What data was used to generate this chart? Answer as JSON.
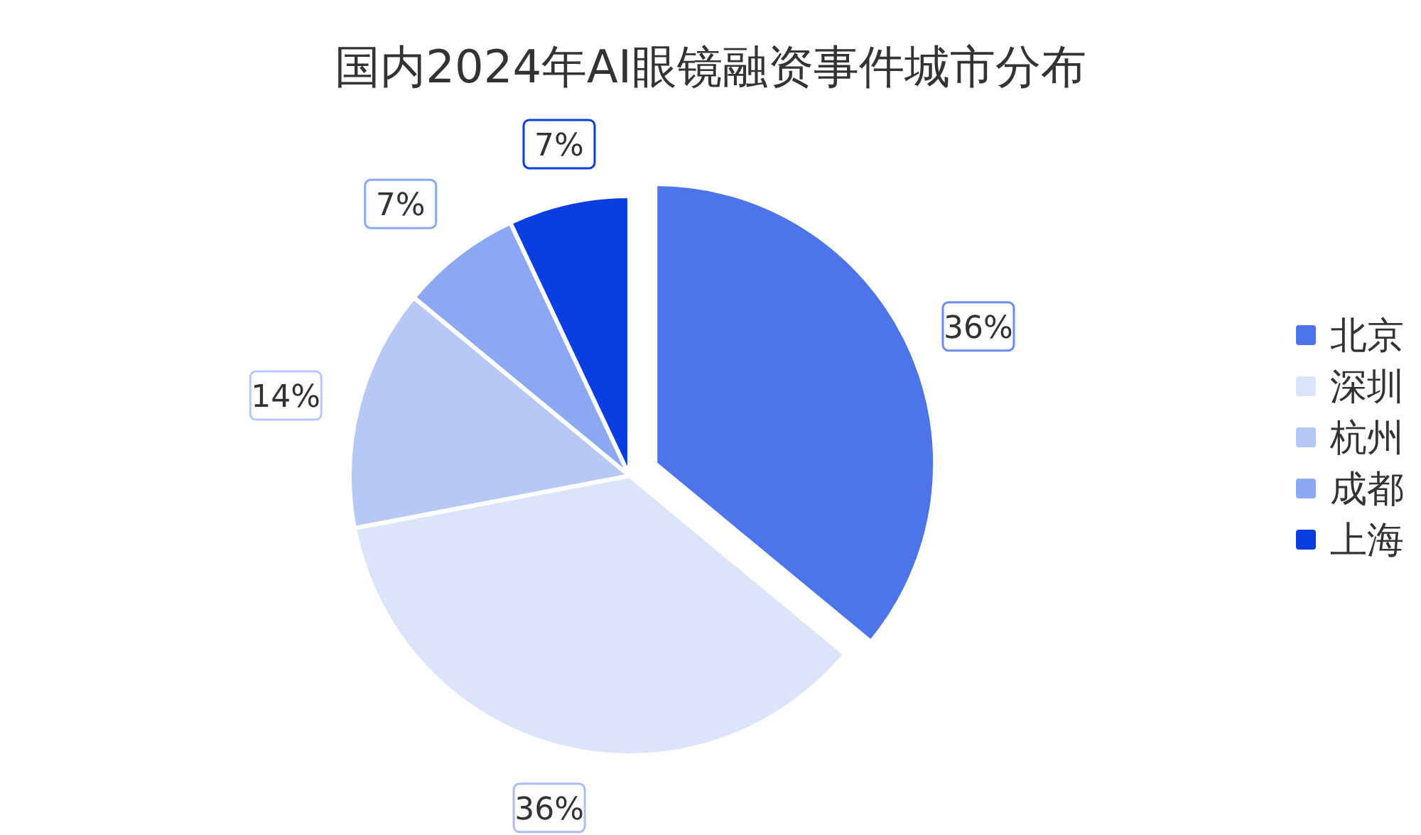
{
  "chart_data": {
    "type": "pie",
    "title": "国内2024年AI眼镜融资事件城市分布",
    "categories": [
      "北京",
      "深圳",
      "杭州",
      "成都",
      "上海"
    ],
    "values": [
      36,
      36,
      14,
      7,
      7
    ],
    "colors": [
      "#4d74ea",
      "#dbe4fb",
      "#b7c8f7",
      "#8ca8f2",
      "#0a3ee0"
    ],
    "value_labels": [
      "36%",
      "36%",
      "14%",
      "7%",
      "7%"
    ],
    "legend": "right"
  }
}
